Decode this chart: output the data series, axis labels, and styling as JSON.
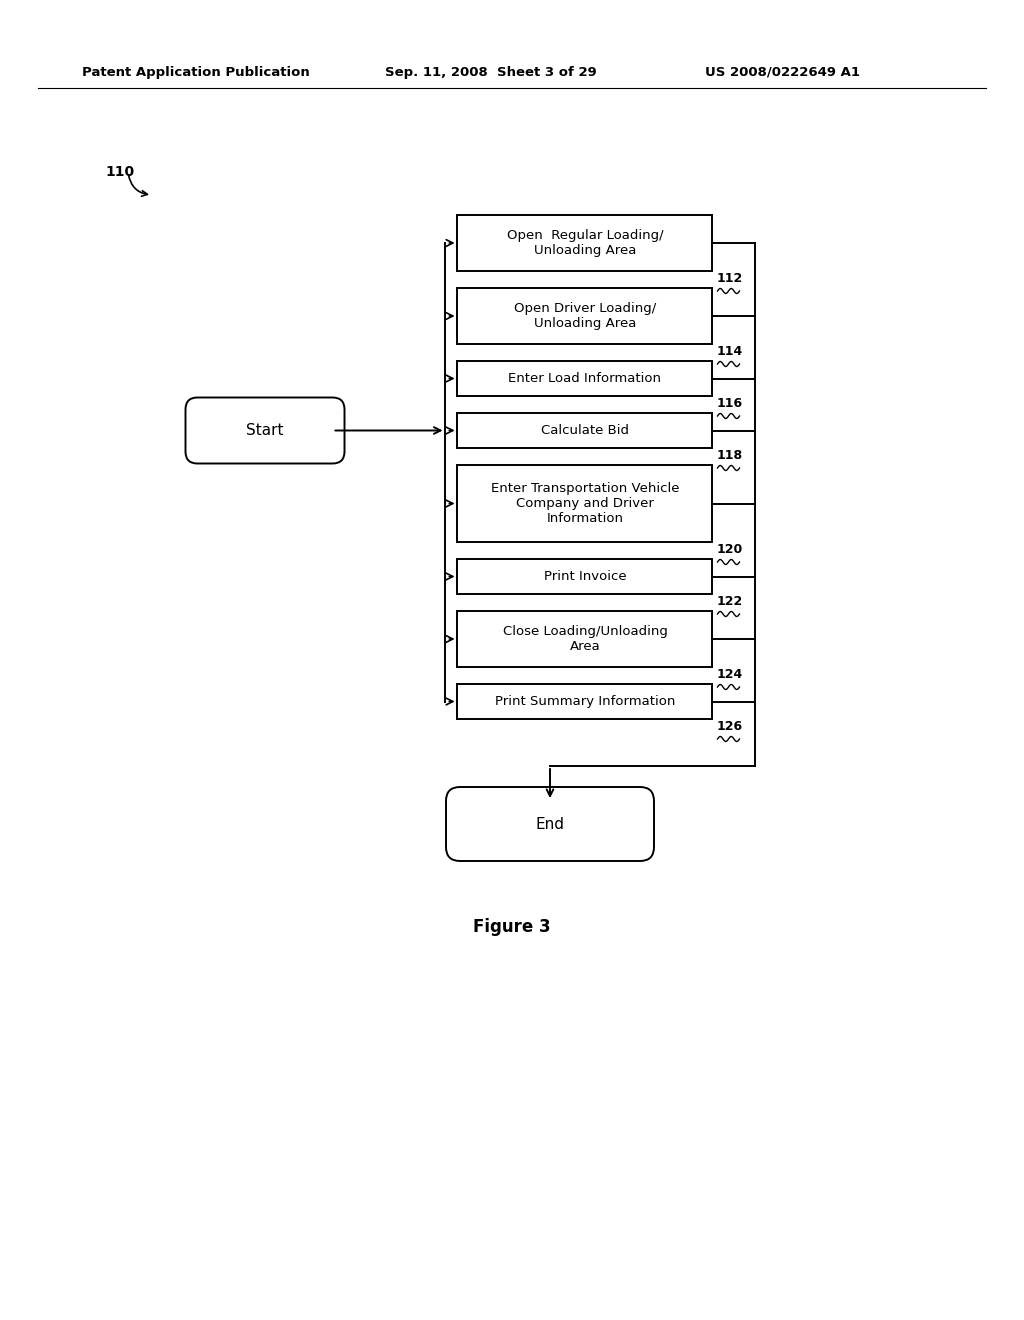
{
  "bg_color": "#ffffff",
  "header_line1": "Patent Application Publication",
  "header_line2": "Sep. 11, 2008  Sheet 3 of 29",
  "header_line3": "US 2008/0222649 A1",
  "figure_label": "Figure 3",
  "label_110": "110",
  "label_start": "Start",
  "label_end": "End",
  "boxes": [
    {
      "id": "112",
      "label": "Open  Regular Loading/\nUnloading Area",
      "lines": 2
    },
    {
      "id": "114",
      "label": "Open Driver Loading/\nUnloading Area",
      "lines": 2
    },
    {
      "id": "116",
      "label": "Enter Load Information",
      "lines": 1
    },
    {
      "id": "118",
      "label": "Calculate Bid",
      "lines": 1
    },
    {
      "id": "120",
      "label": "Enter Transportation Vehicle\nCompany and Driver\nInformation",
      "lines": 3
    },
    {
      "id": "122",
      "label": "Print Invoice",
      "lines": 1
    },
    {
      "id": "124",
      "label": "Close Loading/Unloading\nArea",
      "lines": 2
    },
    {
      "id": "126",
      "label": "Print Summary Information",
      "lines": 1
    }
  ],
  "line_color": "#000000",
  "text_color": "#000000"
}
